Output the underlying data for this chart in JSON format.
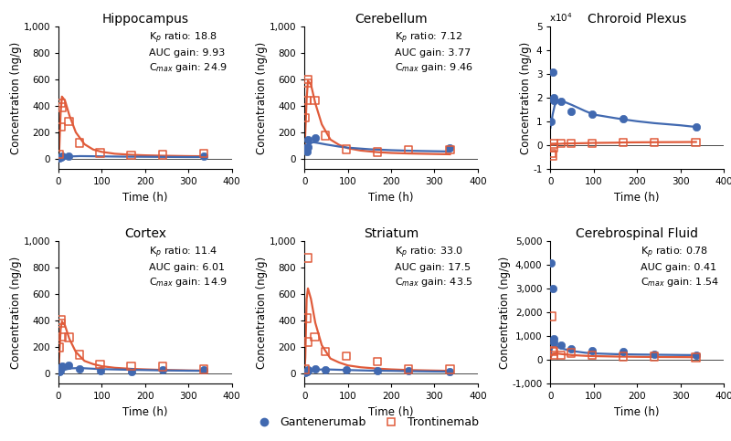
{
  "panels": [
    {
      "title": "Hippocampus",
      "annotation_lines": [
        "K$_p$ ratio: 18.8",
        "AUC gain: 9.93",
        "C$_{max}$ gain: 24.9"
      ],
      "ylabel": "Concentration (ng/g)",
      "xlabel": "Time (h)",
      "ylim": [
        -80,
        1000
      ],
      "yticks": [
        0,
        200,
        400,
        600,
        800,
        1000
      ],
      "ytick_labels": [
        "0",
        "200",
        "400",
        "600",
        "800",
        "1,000"
      ],
      "xlim": [
        0,
        400
      ],
      "xticks": [
        0,
        100,
        200,
        300,
        400
      ],
      "blue_scatter": [
        [
          2,
          8
        ],
        [
          5,
          10
        ],
        [
          7,
          12
        ],
        [
          8,
          18
        ],
        [
          24,
          22
        ],
        [
          336,
          18
        ]
      ],
      "red_scatter": [
        [
          2,
          35
        ],
        [
          5,
          240
        ],
        [
          7,
          420
        ],
        [
          8,
          390
        ],
        [
          24,
          280
        ],
        [
          48,
          120
        ],
        [
          96,
          45
        ],
        [
          168,
          28
        ],
        [
          240,
          30
        ],
        [
          336,
          42
        ]
      ],
      "blue_line_x": [
        0,
        2,
        5,
        10,
        20,
        30,
        50,
        80,
        100,
        150,
        200,
        250,
        300,
        336
      ],
      "blue_line_y": [
        5,
        7,
        10,
        13,
        16,
        18,
        20,
        19,
        18,
        16,
        15,
        14,
        13,
        13
      ],
      "red_line_x": [
        0,
        2,
        5,
        8,
        15,
        25,
        40,
        60,
        80,
        100,
        130,
        168,
        200,
        240,
        300,
        336
      ],
      "red_line_y": [
        10,
        80,
        350,
        470,
        440,
        330,
        200,
        110,
        70,
        52,
        38,
        30,
        26,
        23,
        20,
        19
      ],
      "scale_factor": 1,
      "scale_label": null
    },
    {
      "title": "Cerebellum",
      "annotation_lines": [
        "K$_p$ ratio: 7.12",
        "AUC gain: 3.77",
        "C$_{max}$ gain: 9.46"
      ],
      "ylabel": "Concentration (ng/g)",
      "xlabel": "Time (h)",
      "ylim": [
        -80,
        1000
      ],
      "yticks": [
        0,
        200,
        400,
        600,
        800,
        1000
      ],
      "ytick_labels": [
        "0",
        "200",
        "400",
        "600",
        "800",
        "1,000"
      ],
      "xlim": [
        0,
        400
      ],
      "xticks": [
        0,
        100,
        200,
        300,
        400
      ],
      "blue_scatter": [
        [
          2,
          80
        ],
        [
          5,
          55
        ],
        [
          7,
          90
        ],
        [
          8,
          145
        ],
        [
          24,
          155
        ],
        [
          336,
          85
        ]
      ],
      "red_scatter": [
        [
          2,
          310
        ],
        [
          5,
          440
        ],
        [
          7,
          570
        ],
        [
          8,
          600
        ],
        [
          24,
          440
        ],
        [
          48,
          175
        ],
        [
          96,
          72
        ],
        [
          168,
          52
        ],
        [
          240,
          70
        ],
        [
          336,
          68
        ]
      ],
      "blue_line_x": [
        0,
        2,
        5,
        10,
        20,
        30,
        50,
        80,
        100,
        150,
        200,
        250,
        300,
        336
      ],
      "blue_line_y": [
        45,
        65,
        90,
        110,
        125,
        120,
        108,
        92,
        84,
        72,
        65,
        60,
        57,
        55
      ],
      "red_line_x": [
        0,
        2,
        5,
        8,
        15,
        25,
        40,
        60,
        80,
        100,
        130,
        168,
        200,
        240,
        300,
        336
      ],
      "red_line_y": [
        50,
        200,
        450,
        590,
        560,
        420,
        260,
        145,
        105,
        80,
        62,
        50,
        44,
        40,
        36,
        34
      ],
      "scale_factor": 1,
      "scale_label": null
    },
    {
      "title": "Chroroid Plexus",
      "annotation_lines": [],
      "ylabel": "Concentration (ng/g)",
      "xlabel": "Time (h)",
      "ylim": [
        -10000,
        50000
      ],
      "yticks": [
        -10000,
        0,
        10000,
        20000,
        30000,
        40000,
        50000
      ],
      "ytick_labels": [
        "-1",
        "0",
        "1",
        "2",
        "3",
        "4",
        "5"
      ],
      "xlim": [
        0,
        400
      ],
      "xticks": [
        0,
        100,
        200,
        300,
        400
      ],
      "blue_scatter": [
        [
          2,
          10000
        ],
        [
          5,
          31000
        ],
        [
          7,
          19000
        ],
        [
          8,
          20000
        ],
        [
          24,
          18500
        ],
        [
          48,
          14500
        ],
        [
          96,
          13000
        ],
        [
          168,
          11200
        ],
        [
          336,
          7800
        ]
      ],
      "red_scatter": [
        [
          2,
          -3200
        ],
        [
          5,
          -4200
        ],
        [
          7,
          -800
        ],
        [
          8,
          700
        ],
        [
          24,
          800
        ],
        [
          48,
          900
        ],
        [
          96,
          1000
        ],
        [
          168,
          1200
        ],
        [
          240,
          1300
        ],
        [
          336,
          1400
        ]
      ],
      "blue_line_x": [
        0,
        2,
        5,
        10,
        20,
        30,
        50,
        80,
        100,
        150,
        168,
        200,
        240,
        300,
        336
      ],
      "blue_line_y": [
        7500,
        9500,
        13000,
        17000,
        19000,
        18500,
        17000,
        14500,
        13000,
        11500,
        11000,
        10200,
        9400,
        8500,
        7800
      ],
      "red_line_x": [
        0,
        2,
        5,
        10,
        20,
        30,
        50,
        80,
        100,
        150,
        168,
        200,
        240,
        300,
        336
      ],
      "red_line_y": [
        200,
        300,
        400,
        500,
        700,
        800,
        900,
        1000,
        1100,
        1200,
        1300,
        1350,
        1400,
        1450,
        1500
      ],
      "scale_factor": 1,
      "scale_label": "x10$^4$"
    },
    {
      "title": "Cortex",
      "annotation_lines": [
        "K$_p$ ratio: 11.4",
        "AUC gain: 6.01",
        "C$_{max}$ gain: 14.9"
      ],
      "ylabel": "Concentration (ng/g)",
      "xlabel": "Time (h)",
      "ylim": [
        -80,
        1000
      ],
      "yticks": [
        0,
        200,
        400,
        600,
        800,
        1000
      ],
      "ytick_labels": [
        "0",
        "200",
        "400",
        "600",
        "800",
        "1,000"
      ],
      "xlim": [
        0,
        400
      ],
      "xticks": [
        0,
        100,
        200,
        300,
        400
      ],
      "blue_scatter": [
        [
          2,
          12
        ],
        [
          5,
          18
        ],
        [
          7,
          45
        ],
        [
          8,
          55
        ],
        [
          24,
          58
        ],
        [
          48,
          32
        ],
        [
          96,
          18
        ],
        [
          168,
          12
        ],
        [
          240,
          28
        ],
        [
          336,
          28
        ]
      ],
      "red_scatter": [
        [
          2,
          195
        ],
        [
          5,
          375
        ],
        [
          7,
          400
        ],
        [
          8,
          275
        ],
        [
          24,
          270
        ],
        [
          48,
          138
        ],
        [
          96,
          68
        ],
        [
          168,
          52
        ],
        [
          240,
          48
        ],
        [
          336,
          28
        ]
      ],
      "blue_line_x": [
        0,
        2,
        5,
        10,
        20,
        30,
        50,
        80,
        100,
        150,
        200,
        250,
        300,
        336
      ],
      "blue_line_y": [
        3,
        6,
        12,
        20,
        30,
        36,
        38,
        33,
        30,
        26,
        23,
        20,
        18,
        17
      ],
      "red_line_x": [
        0,
        2,
        5,
        8,
        15,
        25,
        40,
        60,
        80,
        100,
        130,
        168,
        200,
        240,
        300,
        336
      ],
      "red_line_y": [
        15,
        130,
        330,
        390,
        360,
        260,
        160,
        92,
        68,
        52,
        40,
        32,
        28,
        24,
        20,
        19
      ],
      "scale_factor": 1,
      "scale_label": null
    },
    {
      "title": "Striatum",
      "annotation_lines": [
        "K$_p$ ratio: 33.0",
        "AUC gain: 17.5",
        "C$_{max}$ gain: 43.5"
      ],
      "ylabel": "Concentration (ng/g)",
      "xlabel": "Time (h)",
      "ylim": [
        -80,
        1000
      ],
      "yticks": [
        0,
        200,
        400,
        600,
        800,
        1000
      ],
      "ytick_labels": [
        "0",
        "200",
        "400",
        "600",
        "800",
        "1,000"
      ],
      "xlim": [
        0,
        400
      ],
      "xticks": [
        0,
        100,
        200,
        300,
        400
      ],
      "blue_scatter": [
        [
          2,
          4
        ],
        [
          5,
          12
        ],
        [
          7,
          18
        ],
        [
          8,
          28
        ],
        [
          24,
          32
        ],
        [
          48,
          28
        ],
        [
          96,
          22
        ],
        [
          168,
          18
        ],
        [
          240,
          18
        ],
        [
          336,
          13
        ]
      ],
      "red_scatter": [
        [
          2,
          28
        ],
        [
          5,
          415
        ],
        [
          7,
          870
        ],
        [
          8,
          235
        ],
        [
          24,
          275
        ],
        [
          48,
          165
        ],
        [
          96,
          128
        ],
        [
          168,
          88
        ],
        [
          240,
          28
        ],
        [
          336,
          28
        ]
      ],
      "blue_line_x": [
        0,
        2,
        5,
        10,
        20,
        30,
        50,
        80,
        100,
        150,
        200,
        250,
        300,
        336
      ],
      "blue_line_y": [
        2,
        5,
        10,
        16,
        22,
        26,
        28,
        25,
        23,
        19,
        17,
        14,
        12,
        11
      ],
      "red_line_x": [
        0,
        2,
        5,
        8,
        15,
        25,
        40,
        60,
        80,
        100,
        130,
        168,
        200,
        240,
        300,
        336
      ],
      "red_line_y": [
        8,
        120,
        560,
        640,
        560,
        380,
        210,
        110,
        80,
        58,
        44,
        34,
        28,
        23,
        19,
        17
      ],
      "scale_factor": 1,
      "scale_label": null
    },
    {
      "title": "Cerebrospinal Fluid",
      "annotation_lines": [
        "K$_p$ ratio: 0.78",
        "AUC gain: 0.41",
        "C$_{max}$ gain: 1.54"
      ],
      "ylabel": "Concentration (ng/g)",
      "xlabel": "Time (h)",
      "ylim": [
        -1000,
        5000
      ],
      "yticks": [
        -1000,
        0,
        1000,
        2000,
        3000,
        4000,
        5000
      ],
      "ytick_labels": [
        "-1,000",
        "0",
        "1,000",
        "2,000",
        "3,000",
        "4,000",
        "5,000"
      ],
      "xlim": [
        0,
        400
      ],
      "xticks": [
        0,
        100,
        200,
        300,
        400
      ],
      "blue_scatter": [
        [
          2,
          4050
        ],
        [
          5,
          3000
        ],
        [
          7,
          720
        ],
        [
          8,
          870
        ],
        [
          24,
          600
        ],
        [
          48,
          480
        ],
        [
          96,
          380
        ],
        [
          168,
          340
        ],
        [
          240,
          240
        ],
        [
          336,
          195
        ]
      ],
      "red_scatter": [
        [
          2,
          1820
        ],
        [
          5,
          390
        ],
        [
          7,
          340
        ],
        [
          8,
          195
        ],
        [
          24,
          195
        ],
        [
          48,
          290
        ],
        [
          96,
          195
        ],
        [
          168,
          145
        ],
        [
          240,
          145
        ],
        [
          336,
          96
        ]
      ],
      "blue_line_x": [
        0,
        2,
        5,
        10,
        20,
        30,
        50,
        80,
        100,
        150,
        200,
        250,
        300,
        336
      ],
      "blue_line_y": [
        180,
        380,
        560,
        580,
        530,
        460,
        370,
        300,
        270,
        240,
        225,
        215,
        205,
        200
      ],
      "red_line_x": [
        0,
        2,
        5,
        10,
        20,
        30,
        50,
        80,
        100,
        150,
        168,
        200,
        240,
        300,
        336
      ],
      "red_line_y": [
        40,
        160,
        260,
        270,
        255,
        235,
        200,
        170,
        158,
        140,
        136,
        128,
        122,
        116,
        112
      ],
      "scale_factor": 1,
      "scale_label": null
    }
  ],
  "blue_color": "#4169B0",
  "red_color": "#E05B3A",
  "line_width": 1.6,
  "marker_size": 6,
  "legend_labels": [
    "Gantenerumab",
    "Trontinemab"
  ],
  "title_fontsize": 10,
  "label_fontsize": 8.5,
  "tick_fontsize": 7.5,
  "annot_fontsize": 8
}
